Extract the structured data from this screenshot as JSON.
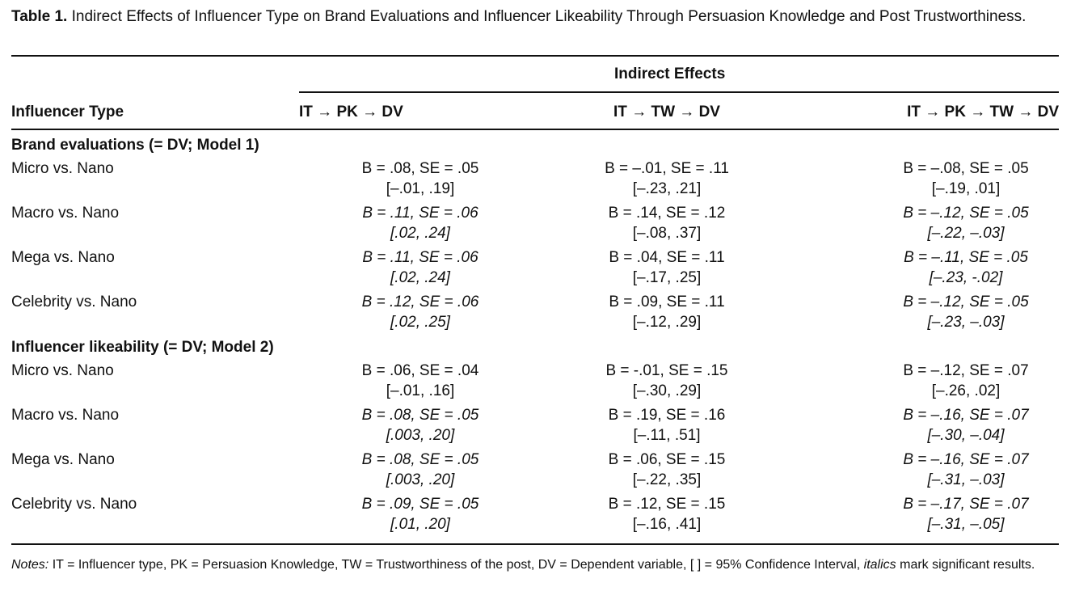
{
  "caption": {
    "label": "Table 1.",
    "text": "Indirect Effects of Influencer Type on Brand Evaluations and Influencer Likeability Through Persuasion Knowledge and Post Trustworthiness."
  },
  "header": {
    "span_label": "Indirect Effects",
    "row_label": "Influencer Type",
    "col1": "IT → PK → DV",
    "col2": "IT → TW → DV",
    "col3": "IT → PK → TW → DV"
  },
  "sections": [
    {
      "title": "Brand evaluations (= DV; Model 1)",
      "rows": [
        {
          "label": "Micro vs. Nano",
          "cells": [
            {
              "b": "B = .08, SE = .05",
              "ci": "[–.01, .19]",
              "sig": false
            },
            {
              "b": "B = –.01, SE = .11",
              "ci": "[–.23, .21]",
              "sig": false
            },
            {
              "b": "B = –.08, SE = .05",
              "ci": "[–.19, .01]",
              "sig": false
            }
          ]
        },
        {
          "label": "Macro vs. Nano",
          "cells": [
            {
              "b": "B = .11, SE = .06",
              "ci": "[.02, .24]",
              "sig": true
            },
            {
              "b": "B = .14, SE = .12",
              "ci": "[–.08, .37]",
              "sig": false
            },
            {
              "b": "B = –.12, SE = .05",
              "ci": "[–.22, –.03]",
              "sig": true
            }
          ]
        },
        {
          "label": "Mega vs. Nano",
          "cells": [
            {
              "b": "B = .11, SE = .06",
              "ci": "[.02, .24]",
              "sig": true
            },
            {
              "b": "B = .04, SE = .11",
              "ci": "[–.17, .25]",
              "sig": false
            },
            {
              "b": "B = –.11, SE = .05",
              "ci": "[–.23, -.02]",
              "sig": true
            }
          ]
        },
        {
          "label": "Celebrity vs. Nano",
          "cells": [
            {
              "b": "B = .12, SE = .06",
              "ci": "[.02, .25]",
              "sig": true
            },
            {
              "b": "B = .09, SE = .11",
              "ci": "[–.12, .29]",
              "sig": false
            },
            {
              "b": "B = –.12, SE = .05",
              "ci": "[–.23, –.03]",
              "sig": true
            }
          ]
        }
      ]
    },
    {
      "title": "Influencer likeability (= DV; Model 2)",
      "rows": [
        {
          "label": "Micro vs. Nano",
          "cells": [
            {
              "b": "B = .06, SE = .04",
              "ci": "[–.01, .16]",
              "sig": false
            },
            {
              "b": "B = -.01, SE = .15",
              "ci": "[–.30, .29]",
              "sig": false
            },
            {
              "b": "B = –.12, SE = .07",
              "ci": "[–.26, .02]",
              "sig": false
            }
          ]
        },
        {
          "label": "Macro vs. Nano",
          "cells": [
            {
              "b": "B = .08, SE = .05",
              "ci": "[.003, .20]",
              "sig": true
            },
            {
              "b": "B = .19, SE = .16",
              "ci": "[–.11, .51]",
              "sig": false
            },
            {
              "b": "B = –.16, SE = .07",
              "ci": "[–.30, –.04]",
              "sig": true
            }
          ]
        },
        {
          "label": "Mega vs. Nano",
          "cells": [
            {
              "b": "B = .08, SE = .05",
              "ci": "[.003, .20]",
              "sig": true
            },
            {
              "b": "B = .06, SE = .15",
              "ci": "[–.22, .35]",
              "sig": false
            },
            {
              "b": "B = –.16, SE = .07",
              "ci": "[–.31, –.03]",
              "sig": true
            }
          ]
        },
        {
          "label": "Celebrity vs. Nano",
          "cells": [
            {
              "b": "B = .09, SE = .05",
              "ci": "[.01, .20]",
              "sig": true
            },
            {
              "b": "B = .12, SE = .15",
              "ci": "[–.16, .41]",
              "sig": false
            },
            {
              "b": "B = –.17, SE = .07",
              "ci": "[–.31, –.05]",
              "sig": true
            }
          ]
        }
      ]
    }
  ],
  "notes": {
    "label": "Notes:",
    "text_before": " IT = Influencer type, PK = Persuasion Knowledge, TW = Trustworthiness of the post, DV = Dependent variable, [ ] = 95% Confidence Interval, ",
    "italic_word": "italics",
    "text_after": " mark significant results."
  }
}
